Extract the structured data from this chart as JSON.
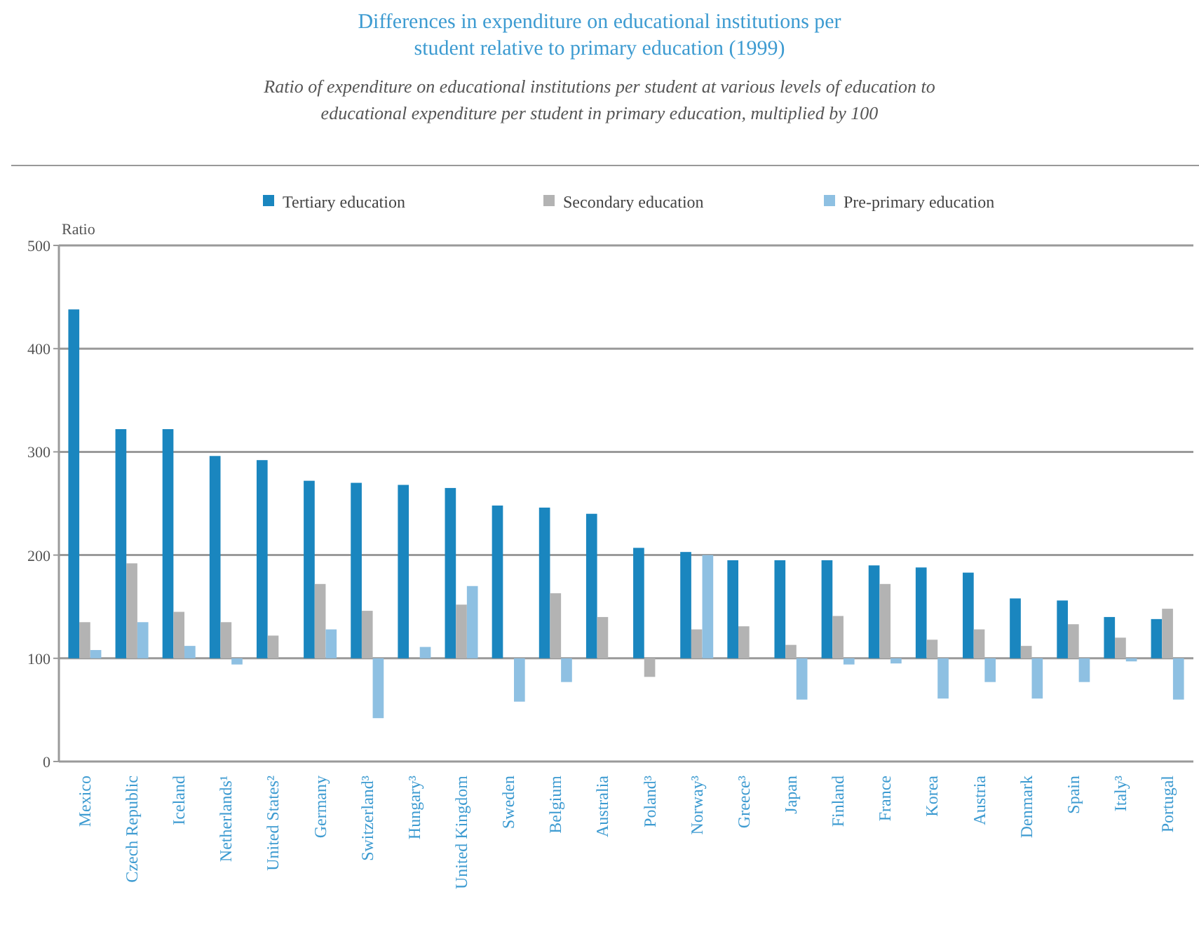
{
  "chart_data": {
    "type": "bar",
    "title": "Differences in expenditure on educational institutions per student relative to primary education (1999)",
    "subtitle": "Ratio of expenditure on educational institutions per student at various levels of education to educational expenditure per student in primary education, multiplied by 100",
    "ylabel": "Ratio",
    "categories": [
      "Mexico",
      "Czech Republic",
      "Iceland",
      "Netherlands¹",
      "United States²",
      "Germany",
      "Switzerland³",
      "Hungary³",
      "United Kingdom",
      "Sweden",
      "Belgium",
      "Australia",
      "Poland³",
      "Norway³",
      "Greece³",
      "Japan",
      "Finland",
      "France",
      "Korea",
      "Austria",
      "Denmark",
      "Spain",
      "Italy³",
      "Portugal"
    ],
    "series": [
      {
        "name": "Tertiary education",
        "color": "#1a86bf",
        "base": [
          100,
          100,
          100,
          100,
          100,
          100,
          100,
          100,
          100,
          100,
          100,
          100,
          100,
          100,
          100,
          100,
          100,
          100,
          100,
          100,
          100,
          100,
          100,
          100
        ],
        "values": [
          338,
          222,
          222,
          196,
          192,
          172,
          170,
          168,
          165,
          148,
          146,
          140,
          107,
          103,
          95,
          95,
          95,
          90,
          88,
          83,
          58,
          56,
          40,
          38
        ]
      },
      {
        "name": "Secondary education",
        "color": "#b3b3b3",
        "base": [
          100,
          100,
          100,
          100,
          100,
          100,
          100,
          null,
          100,
          null,
          100,
          100,
          100,
          100,
          100,
          100,
          100,
          100,
          100,
          100,
          100,
          100,
          100,
          100
        ],
        "values": [
          35,
          92,
          45,
          35,
          22,
          72,
          46,
          null,
          52,
          null,
          63,
          40,
          -18,
          28,
          31,
          13,
          41,
          72,
          18,
          28,
          12,
          33,
          20,
          48
        ]
      },
      {
        "name": "Pre-primary education",
        "color": "#8ec0e2",
        "base": [
          100,
          100,
          100,
          100,
          null,
          100,
          100,
          100,
          100,
          100,
          100,
          null,
          null,
          100,
          null,
          100,
          100,
          100,
          100,
          100,
          100,
          100,
          100,
          100
        ],
        "values": [
          8,
          35,
          12,
          -6,
          null,
          28,
          -58,
          11,
          70,
          -42,
          -23,
          null,
          null,
          100,
          null,
          -40,
          -6,
          -5,
          -39,
          -23,
          -39,
          -23,
          -3,
          -40
        ]
      }
    ],
    "ylim": [
      0,
      500
    ],
    "yticks": [
      0,
      100,
      200,
      300,
      400,
      500
    ],
    "grid": "y",
    "legend": "top"
  }
}
